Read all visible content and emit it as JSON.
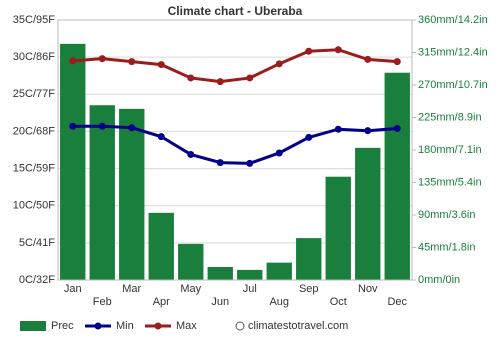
{
  "chart_data": {
    "type": "bar",
    "title": "Climate chart - Uberaba",
    "categories": [
      "Jan",
      "Feb",
      "Mar",
      "Apr",
      "May",
      "Jun",
      "Jul",
      "Aug",
      "Sep",
      "Oct",
      "Nov",
      "Dec"
    ],
    "series": [
      {
        "name": "Prec",
        "type": "bar",
        "axis": "y2",
        "color": "#1a7f3c",
        "values": [
          327,
          242,
          237,
          93,
          50,
          18,
          14,
          24,
          58,
          143,
          183,
          287
        ]
      },
      {
        "name": "Min",
        "type": "line",
        "color": "#00008b",
        "values": [
          20.7,
          20.7,
          20.5,
          19.3,
          16.9,
          15.8,
          15.7,
          17.1,
          19.2,
          20.3,
          20.1,
          20.4
        ]
      },
      {
        "name": "Max",
        "type": "line",
        "color": "#9b1c1c",
        "values": [
          29.5,
          29.8,
          29.4,
          29.0,
          27.2,
          26.7,
          27.2,
          29.1,
          30.8,
          31.0,
          29.7,
          29.4
        ]
      }
    ],
    "ylim": [
      0,
      35
    ],
    "yticks": [
      {
        "value": 0,
        "label": "0C/32F"
      },
      {
        "value": 5,
        "label": "5C/41F"
      },
      {
        "value": 10,
        "label": "10C/50F"
      },
      {
        "value": 15,
        "label": "15C/59F"
      },
      {
        "value": 20,
        "label": "20C/68F"
      },
      {
        "value": 25,
        "label": "25C/77F"
      },
      {
        "value": 30,
        "label": "30C/86F"
      },
      {
        "value": 35,
        "label": "35C/95F"
      }
    ],
    "y2lim": [
      0,
      360
    ],
    "y2ticks": [
      {
        "value": 0,
        "label": "0mm/0in"
      },
      {
        "value": 45,
        "label": "45mm/1.8in"
      },
      {
        "value": 90,
        "label": "90mm/3.6in"
      },
      {
        "value": 135,
        "label": "135mm/5.4in"
      },
      {
        "value": 180,
        "label": "180mm/7.1in"
      },
      {
        "value": 225,
        "label": "225mm/8.9in"
      },
      {
        "value": 270,
        "label": "270mm/10.7in"
      },
      {
        "value": 315,
        "label": "315mm/12.4in"
      },
      {
        "value": 360,
        "label": "360mm/14.2in"
      }
    ],
    "grid": true,
    "source": "climatestotravel.com"
  }
}
